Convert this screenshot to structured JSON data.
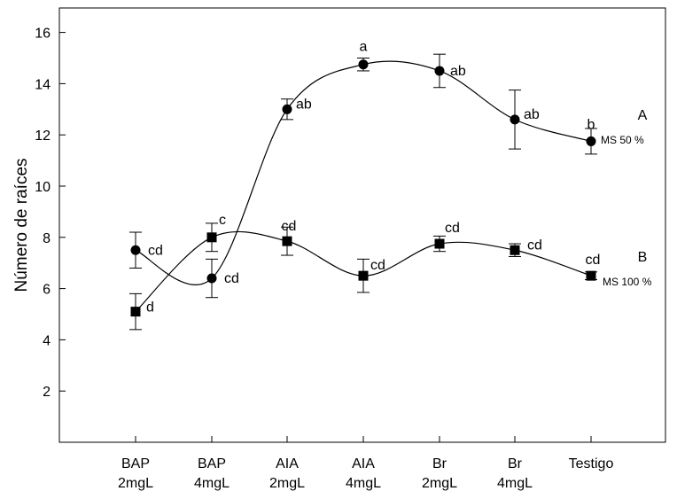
{
  "chart_data": {
    "type": "line",
    "title": "",
    "xlabel": "",
    "ylabel": "Número de raíces",
    "ylim": [
      0,
      17
    ],
    "yticks": [
      2,
      4,
      6,
      8,
      10,
      12,
      14,
      16
    ],
    "grid": false,
    "categories": [
      [
        "BAP",
        "2mgL"
      ],
      [
        "BAP",
        "4mgL"
      ],
      [
        "AIA",
        "2mgL"
      ],
      [
        "AIA",
        "4mgL"
      ],
      [
        "Br",
        "2mgL"
      ],
      [
        "Br",
        "4mgL"
      ],
      [
        "Testigo",
        ""
      ]
    ],
    "series": [
      {
        "name": "MS 50 %",
        "group_label": "A",
        "marker": "circle",
        "values": [
          7.5,
          6.4,
          13.0,
          14.75,
          14.5,
          12.6,
          11.75
        ],
        "errors": [
          0.7,
          0.75,
          0.4,
          0.25,
          0.65,
          1.15,
          0.5
        ],
        "letters": [
          "cd",
          "cd",
          "ab",
          "a",
          "ab",
          "ab",
          "b"
        ]
      },
      {
        "name": "MS 100 %",
        "group_label": "B",
        "marker": "square",
        "values": [
          5.1,
          8.0,
          7.85,
          6.5,
          7.75,
          7.5,
          6.5
        ],
        "errors": [
          0.7,
          0.55,
          0.55,
          0.65,
          0.3,
          0.25,
          0.15
        ],
        "letters": [
          "d",
          "c",
          "cd",
          "cd",
          "cd",
          "cd",
          "cd"
        ]
      }
    ]
  }
}
